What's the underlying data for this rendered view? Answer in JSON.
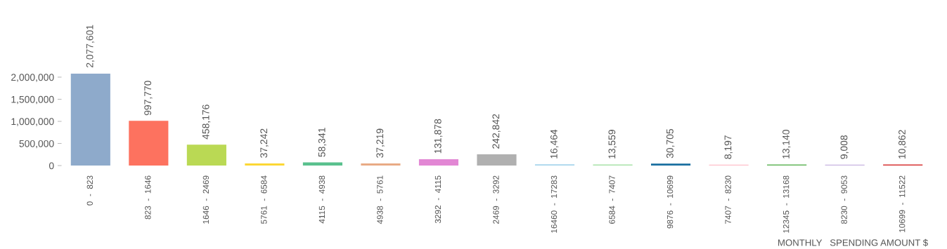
{
  "chart_data": {
    "type": "bar",
    "xlabel": "MONTHLY   SPENDING AMOUNT $",
    "categories": [
      "0  -  823",
      "823  -  1646",
      "1646  -  2469",
      "5761  -  6584",
      "4115  -  4938",
      "4938  -  5761",
      "3292  -  4115",
      "2469  -  3292",
      "16460  -  17283",
      "6584  -  7407",
      "9876  -  10699",
      "7407  -  8230",
      "12345  -  13168",
      "8230  -  9053",
      "10699  -  11522"
    ],
    "values": [
      2077601,
      997770,
      458176,
      37242,
      58341,
      37219,
      131878,
      242842,
      16464,
      13559,
      30705,
      8197,
      13140,
      9008,
      10862
    ],
    "colors": [
      "#8eaacb",
      "#fd725f",
      "#bad954",
      "#fcd734",
      "#5ac18e",
      "#e8ab85",
      "#e287d4",
      "#b0b0b0",
      "#a6d5ec",
      "#a8e2a8",
      "#1a6fa0",
      "#ffbfca",
      "#62b55a",
      "#c8b4e0",
      "#d73434"
    ],
    "yticks": [
      {
        "value": 0,
        "label": "0"
      },
      {
        "value": 500000,
        "label": "500,000"
      },
      {
        "value": 1000000,
        "label": "1,000,000"
      },
      {
        "value": 1500000,
        "label": "1,500,000"
      },
      {
        "value": 2000000,
        "label": "2,000,000"
      }
    ],
    "value_labels": [
      "2,077,601",
      "997,770",
      "458,176",
      "37,242",
      "58,341",
      "37,219",
      "131,878",
      "242,842",
      "16,464",
      "13,559",
      "30,705",
      "8,197",
      "13,140",
      "9,008",
      "10,862"
    ],
    "ylim": [
      0,
      2077601
    ],
    "grid": false,
    "legend": false
  }
}
